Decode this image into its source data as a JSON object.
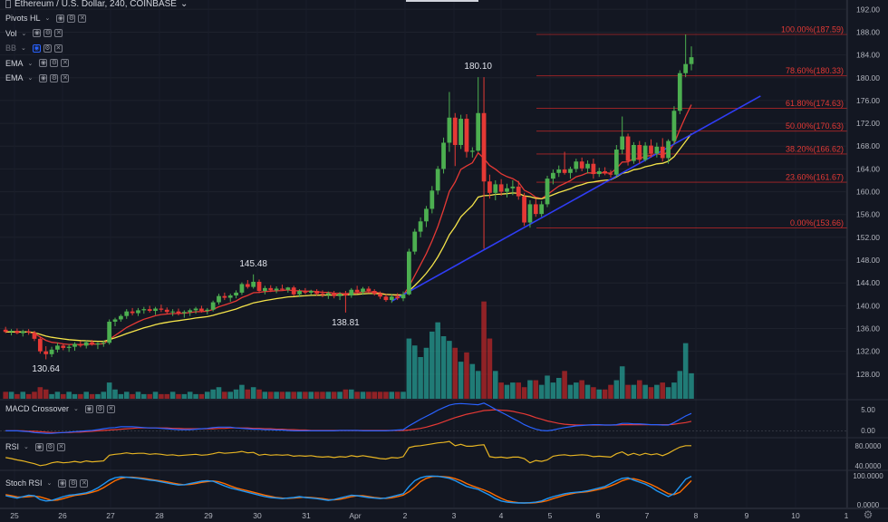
{
  "header": {
    "symbol": "Ethereum / U.S. Dollar, 240, COINBASE"
  },
  "indicators": [
    {
      "label": "Pivots HL",
      "dim": false
    },
    {
      "label": "Vol",
      "dim": false
    },
    {
      "label": "BB",
      "dim": true
    },
    {
      "label": "EMA",
      "dim": false
    },
    {
      "label": "EMA",
      "dim": false
    }
  ],
  "icons": [
    "eye-icon",
    "settings-icon",
    "close-icon"
  ],
  "panes": {
    "macd": {
      "label": "MACD Crossover",
      "ticks": [
        "5.00",
        "0.00"
      ]
    },
    "rsi": {
      "label": "RSI",
      "ticks": [
        "80.0000",
        "40.0000"
      ]
    },
    "stoch": {
      "label": "Stoch RSI",
      "ticks": [
        "100.0000",
        "0.0000"
      ]
    }
  },
  "colors": {
    "bull": "#4caf50",
    "bear": "#e53935",
    "ema_fast": "#e53935",
    "ema_slow": "#f5e44a",
    "trend": "#2f3df5",
    "fib": "#c62828",
    "vol_bull": "#26a69a",
    "vol_bear": "#c62828",
    "macd": "#2962ff",
    "signal": "#e53935",
    "rsi": "#e6b422",
    "stoch_k": "#2196f3",
    "stoch_d": "#ff6d00"
  },
  "chart_data": {
    "type": "candlestick",
    "ylim": [
      124,
      193
    ],
    "y_ticks": [
      "192.00",
      "188.00",
      "184.00",
      "180.00",
      "176.00",
      "172.00",
      "168.00",
      "164.00",
      "160.00",
      "156.00",
      "152.00",
      "148.00",
      "144.00",
      "140.00",
      "136.00",
      "132.00",
      "128.00"
    ],
    "x_ticks": [
      "25",
      "26",
      "27",
      "28",
      "29",
      "30",
      "31",
      "Apr",
      "2",
      "3",
      "4",
      "5",
      "6",
      "7",
      "8",
      "9",
      "10",
      "1"
    ],
    "fib_levels": [
      {
        "label": "100.00%(187.59)",
        "value": 187.59
      },
      {
        "label": "78.60%(180.33)",
        "value": 180.33
      },
      {
        "label": "61.80%(174.63)",
        "value": 174.63
      },
      {
        "label": "50.00%(170.63)",
        "value": 170.63
      },
      {
        "label": "38.20%(166.62)",
        "value": 166.62
      },
      {
        "label": "23.60%(161.67)",
        "value": 161.67
      },
      {
        "label": "0.00%(153.66)",
        "value": 153.66
      }
    ],
    "pivot_labels": [
      {
        "label": "180.10",
        "value": 180.1,
        "bar": 82
      },
      {
        "label": "145.48",
        "value": 145.48,
        "bar": 43
      },
      {
        "label": "138.81",
        "value": 138.81,
        "bar": 59
      },
      {
        "label": "130.64",
        "value": 130.64,
        "bar": 7
      }
    ],
    "trendline": {
      "from_bar": 67,
      "from_price": 140.8,
      "to_bar": 131,
      "to_price": 176.8
    },
    "ohlc": [
      [
        135.8,
        136.3,
        135.2,
        135.4
      ],
      [
        135.4,
        135.9,
        134.8,
        135.6
      ],
      [
        135.6,
        136.0,
        135.0,
        135.2
      ],
      [
        135.2,
        135.8,
        134.6,
        135.5
      ],
      [
        135.5,
        135.9,
        134.9,
        135.3
      ],
      [
        135.3,
        135.6,
        133.8,
        134.2
      ],
      [
        134.2,
        134.6,
        131.6,
        132.0
      ],
      [
        132.0,
        132.9,
        130.6,
        131.5
      ],
      [
        131.5,
        132.8,
        131.0,
        132.3
      ],
      [
        132.3,
        133.5,
        131.8,
        133.0
      ],
      [
        133.0,
        133.4,
        132.2,
        132.6
      ],
      [
        132.6,
        133.2,
        131.9,
        132.8
      ],
      [
        132.8,
        133.6,
        132.1,
        133.3
      ],
      [
        133.3,
        133.8,
        132.7,
        133.0
      ],
      [
        133.0,
        133.9,
        132.5,
        133.6
      ],
      [
        133.6,
        134.0,
        133.0,
        133.2
      ],
      [
        133.2,
        133.6,
        132.4,
        133.4
      ],
      [
        133.4,
        133.9,
        132.8,
        133.5
      ],
      [
        133.5,
        137.6,
        133.2,
        137.2
      ],
      [
        137.2,
        137.9,
        136.4,
        137.6
      ],
      [
        137.6,
        138.5,
        137.2,
        138.2
      ],
      [
        138.2,
        139.4,
        137.7,
        139.0
      ],
      [
        139.0,
        139.6,
        138.3,
        138.7
      ],
      [
        138.7,
        139.6,
        138.2,
        139.2
      ],
      [
        139.2,
        139.8,
        138.6,
        139.4
      ],
      [
        139.4,
        140.0,
        138.8,
        139.1
      ],
      [
        139.1,
        139.8,
        138.4,
        139.5
      ],
      [
        139.5,
        140.2,
        138.9,
        139.3
      ],
      [
        139.3,
        139.7,
        138.5,
        138.9
      ],
      [
        138.9,
        139.4,
        138.2,
        139.0
      ],
      [
        139.0,
        139.5,
        138.3,
        138.7
      ],
      [
        138.7,
        139.2,
        137.9,
        138.9
      ],
      [
        138.9,
        139.5,
        138.2,
        139.2
      ],
      [
        139.2,
        139.8,
        138.6,
        139.5
      ],
      [
        139.5,
        140.0,
        138.8,
        139.1
      ],
      [
        139.1,
        139.6,
        138.5,
        139.3
      ],
      [
        139.3,
        140.9,
        139.0,
        140.6
      ],
      [
        140.6,
        142.1,
        140.2,
        141.7
      ],
      [
        141.7,
        142.3,
        141.0,
        141.4
      ],
      [
        141.4,
        142.1,
        140.7,
        141.8
      ],
      [
        141.8,
        142.7,
        141.3,
        142.3
      ],
      [
        142.3,
        144.1,
        141.9,
        143.8
      ],
      [
        143.8,
        144.5,
        143.0,
        143.3
      ],
      [
        143.3,
        145.5,
        143.0,
        144.2
      ],
      [
        144.2,
        144.6,
        142.2,
        142.6
      ],
      [
        142.6,
        143.5,
        142.0,
        143.1
      ],
      [
        143.1,
        143.6,
        142.4,
        142.7
      ],
      [
        142.7,
        143.4,
        142.2,
        143.0
      ],
      [
        143.0,
        143.7,
        142.6,
        142.8
      ],
      [
        142.8,
        143.3,
        142.3,
        143.2
      ],
      [
        143.2,
        143.5,
        141.7,
        142.0
      ],
      [
        142.0,
        142.9,
        141.5,
        142.6
      ],
      [
        142.6,
        143.1,
        142.0,
        142.3
      ],
      [
        142.3,
        142.8,
        141.9,
        142.6
      ],
      [
        142.6,
        142.9,
        141.8,
        142.1
      ],
      [
        142.1,
        142.7,
        141.5,
        141.9
      ],
      [
        141.9,
        142.5,
        141.2,
        142.2
      ],
      [
        142.2,
        142.6,
        141.3,
        141.7
      ],
      [
        141.7,
        142.4,
        141.0,
        142.1
      ],
      [
        142.1,
        142.6,
        138.8,
        141.8
      ],
      [
        141.8,
        143.1,
        141.4,
        142.8
      ],
      [
        142.8,
        143.5,
        142.1,
        142.4
      ],
      [
        142.4,
        143.3,
        141.9,
        143.0
      ],
      [
        143.0,
        143.4,
        142.2,
        142.6
      ],
      [
        142.6,
        142.9,
        141.8,
        142.1
      ],
      [
        142.1,
        142.5,
        141.2,
        141.6
      ],
      [
        141.6,
        142.0,
        140.7,
        141.0
      ],
      [
        141.0,
        142.0,
        140.5,
        141.6
      ],
      [
        141.6,
        142.2,
        141.0,
        141.3
      ],
      [
        141.3,
        142.5,
        140.8,
        142.0
      ],
      [
        142.0,
        150.0,
        141.8,
        149.5
      ],
      [
        149.5,
        153.5,
        149.0,
        153.0
      ],
      [
        153.0,
        155.5,
        152.0,
        154.8
      ],
      [
        154.8,
        157.5,
        153.8,
        157.0
      ],
      [
        157.0,
        161.0,
        156.2,
        160.2
      ],
      [
        160.2,
        164.5,
        159.5,
        164.0
      ],
      [
        164.0,
        169.5,
        163.2,
        168.6
      ],
      [
        168.6,
        177.5,
        167.0,
        173.0
      ],
      [
        173.0,
        173.8,
        164.5,
        168.2
      ],
      [
        168.2,
        173.5,
        167.5,
        172.8
      ],
      [
        172.8,
        173.6,
        166.0,
        167.0
      ],
      [
        167.0,
        167.8,
        166.0,
        167.2
      ],
      [
        167.2,
        180.1,
        167.0,
        173.8
      ],
      [
        173.8,
        180.1,
        150.0,
        161.8
      ],
      [
        161.8,
        163.0,
        158.8,
        159.8
      ],
      [
        159.8,
        162.0,
        158.5,
        161.3
      ],
      [
        161.3,
        162.2,
        159.3,
        160.0
      ],
      [
        160.0,
        161.4,
        159.0,
        160.6
      ],
      [
        160.6,
        162.0,
        159.4,
        160.9
      ],
      [
        160.9,
        161.9,
        158.6,
        159.2
      ],
      [
        159.2,
        159.8,
        154.0,
        154.6
      ],
      [
        154.6,
        158.5,
        153.7,
        157.8
      ],
      [
        157.8,
        158.8,
        155.6,
        156.1
      ],
      [
        156.1,
        158.4,
        155.6,
        157.8
      ],
      [
        157.8,
        162.8,
        157.3,
        162.3
      ],
      [
        162.3,
        163.9,
        161.3,
        163.3
      ],
      [
        163.3,
        164.6,
        162.6,
        163.9
      ],
      [
        163.9,
        167.0,
        163.0,
        163.3
      ],
      [
        163.3,
        164.4,
        162.3,
        164.0
      ],
      [
        164.0,
        165.8,
        163.4,
        165.3
      ],
      [
        165.3,
        166.0,
        163.6,
        164.1
      ],
      [
        164.1,
        165.5,
        163.2,
        164.9
      ],
      [
        164.9,
        165.8,
        162.3,
        163.1
      ],
      [
        163.1,
        164.2,
        162.6,
        163.6
      ],
      [
        163.6,
        164.3,
        162.9,
        163.2
      ],
      [
        163.2,
        163.8,
        162.5,
        163.0
      ],
      [
        163.0,
        168.2,
        162.6,
        167.4
      ],
      [
        167.4,
        173.2,
        166.6,
        169.7
      ],
      [
        169.7,
        170.2,
        164.6,
        165.4
      ],
      [
        165.4,
        168.7,
        164.9,
        168.2
      ],
      [
        168.2,
        168.9,
        164.9,
        165.6
      ],
      [
        165.6,
        168.7,
        165.3,
        168.1
      ],
      [
        168.1,
        169.2,
        166.0,
        166.7
      ],
      [
        166.7,
        168.6,
        166.0,
        167.9
      ],
      [
        167.9,
        169.4,
        165.3,
        165.9
      ],
      [
        165.9,
        169.2,
        164.9,
        168.9
      ],
      [
        168.9,
        175.0,
        168.3,
        174.2
      ],
      [
        174.2,
        181.3,
        173.6,
        180.8
      ],
      [
        180.8,
        187.59,
        180.1,
        182.4
      ],
      [
        182.4,
        185.5,
        181.3,
        183.6
      ]
    ],
    "volume": [
      3,
      3,
      2,
      3,
      2,
      3,
      5,
      4,
      2,
      3,
      2,
      3,
      2,
      2,
      3,
      2,
      2,
      3,
      7,
      4,
      2,
      3,
      2,
      3,
      2,
      2,
      3,
      2,
      2,
      3,
      2,
      2,
      3,
      2,
      2,
      3,
      4,
      5,
      3,
      3,
      4,
      6,
      4,
      5,
      4,
      3,
      3,
      3,
      3,
      3,
      3,
      3,
      3,
      3,
      3,
      3,
      3,
      3,
      3,
      4,
      4,
      3,
      3,
      3,
      3,
      3,
      3,
      3,
      3,
      3,
      26,
      23,
      18,
      22,
      29,
      33,
      27,
      25,
      22,
      16,
      20,
      15,
      12,
      42,
      26,
      12,
      7,
      6,
      7,
      7,
      5,
      8,
      8,
      6,
      10,
      7,
      9,
      12,
      6,
      7,
      8,
      6,
      5,
      4,
      4,
      6,
      8,
      14,
      6,
      6,
      8,
      6,
      5,
      6,
      7,
      5,
      7,
      12,
      24,
      11
    ],
    "macd": [
      0.0,
      0.0,
      0.0,
      -0.1,
      -0.2,
      -0.4,
      -0.5,
      -0.6,
      -0.6,
      -0.5,
      -0.4,
      -0.3,
      -0.2,
      -0.1,
      0.0,
      0.1,
      0.3,
      0.5,
      0.7,
      0.8,
      1.0,
      1.0,
      1.0,
      0.9,
      0.8,
      0.7,
      0.7,
      0.6,
      0.5,
      0.4,
      0.3,
      0.3,
      0.3,
      0.4,
      0.5,
      0.6,
      0.8,
      0.9,
      0.9,
      0.9,
      0.7,
      0.6,
      0.5,
      0.4,
      0.4,
      0.3,
      0.3,
      0.2,
      0.2,
      0.1,
      0.0,
      0.0,
      0.0,
      0.0,
      0.0,
      0.0,
      0.0,
      0.0,
      0.1,
      0.1,
      0.1,
      0.1,
      0.0,
      0.0,
      0.0,
      0.0,
      0.0,
      0.1,
      0.2,
      0.3,
      1.2,
      2.0,
      2.8,
      3.5,
      4.2,
      5.0,
      5.6,
      6.2,
      6.5,
      6.6,
      6.5,
      6.4,
      6.3,
      6.7,
      6.0,
      5.2,
      4.5,
      3.8,
      3.0,
      2.3,
      1.5,
      0.9,
      0.4,
      0.1,
      0.0,
      0.2,
      0.5,
      0.8,
      1.0,
      1.2,
      1.3,
      1.4,
      1.5,
      1.5,
      1.4,
      1.4,
      1.5,
      1.8,
      1.8,
      1.7,
      1.7,
      1.6,
      1.5,
      1.5,
      1.4,
      1.4,
      2.0,
      2.8,
      3.6,
      4.2
    ],
    "signal": [
      0.0,
      0.0,
      0.0,
      0.0,
      -0.1,
      -0.1,
      -0.2,
      -0.3,
      -0.4,
      -0.4,
      -0.4,
      -0.4,
      -0.3,
      -0.3,
      -0.2,
      -0.1,
      0.0,
      0.1,
      0.2,
      0.3,
      0.4,
      0.5,
      0.6,
      0.7,
      0.7,
      0.7,
      0.7,
      0.7,
      0.7,
      0.6,
      0.6,
      0.5,
      0.5,
      0.5,
      0.5,
      0.5,
      0.5,
      0.6,
      0.6,
      0.7,
      0.7,
      0.7,
      0.7,
      0.6,
      0.6,
      0.5,
      0.5,
      0.4,
      0.4,
      0.3,
      0.3,
      0.2,
      0.2,
      0.1,
      0.1,
      0.1,
      0.1,
      0.1,
      0.1,
      0.1,
      0.1,
      0.1,
      0.1,
      0.1,
      0.1,
      0.1,
      0.1,
      0.1,
      0.1,
      0.1,
      0.2,
      0.4,
      0.6,
      0.9,
      1.3,
      1.7,
      2.2,
      2.7,
      3.2,
      3.6,
      4.0,
      4.3,
      4.6,
      4.9,
      5.0,
      5.1,
      5.0,
      4.9,
      4.7,
      4.4,
      4.1,
      3.7,
      3.2,
      2.8,
      2.4,
      2.1,
      1.8,
      1.6,
      1.5,
      1.4,
      1.4,
      1.4,
      1.4,
      1.4,
      1.4,
      1.4,
      1.4,
      1.5,
      1.5,
      1.5,
      1.5,
      1.5,
      1.5,
      1.5,
      1.5,
      1.5,
      1.6,
      1.8,
      2.0,
      2.3
    ],
    "rsi": [
      55,
      53,
      50,
      48,
      45,
      42,
      38,
      40,
      44,
      46,
      44,
      45,
      47,
      45,
      48,
      46,
      47,
      48,
      60,
      62,
      63,
      65,
      63,
      64,
      64,
      62,
      63,
      62,
      60,
      61,
      59,
      60,
      61,
      62,
      60,
      61,
      63,
      66,
      64,
      65,
      66,
      68,
      65,
      66,
      60,
      62,
      60,
      61,
      60,
      61,
      58,
      59,
      58,
      59,
      57,
      56,
      57,
      55,
      57,
      56,
      59,
      57,
      59,
      57,
      55,
      53,
      52,
      55,
      54,
      57,
      76,
      79,
      80,
      82,
      84,
      86,
      87,
      89,
      80,
      83,
      79,
      79,
      81,
      82,
      57,
      55,
      56,
      54,
      56,
      56,
      53,
      44,
      49,
      47,
      50,
      58,
      60,
      61,
      59,
      60,
      61,
      60,
      57,
      58,
      57,
      56,
      63,
      67,
      60,
      64,
      60,
      64,
      61,
      63,
      59,
      64,
      71,
      77,
      80,
      80
    ],
    "stoch_k": [
      28,
      24,
      20,
      25,
      30,
      28,
      15,
      10,
      12,
      18,
      25,
      30,
      32,
      35,
      38,
      45,
      55,
      68,
      82,
      90,
      93,
      92,
      90,
      88,
      85,
      82,
      80,
      76,
      72,
      68,
      65,
      66,
      70,
      74,
      78,
      80,
      78,
      70,
      62,
      55,
      50,
      45,
      40,
      35,
      30,
      25,
      22,
      20,
      18,
      20,
      22,
      25,
      22,
      20,
      18,
      15,
      12,
      15,
      20,
      25,
      30,
      28,
      25,
      22,
      20,
      18,
      20,
      25,
      30,
      35,
      60,
      80,
      90,
      95,
      96,
      95,
      92,
      88,
      80,
      70,
      60,
      55,
      50,
      40,
      30,
      18,
      10,
      6,
      4,
      3,
      3,
      4,
      6,
      10,
      18,
      25,
      30,
      35,
      38,
      40,
      42,
      45,
      50,
      55,
      60,
      70,
      80,
      88,
      90,
      82,
      75,
      68,
      58,
      45,
      35,
      25,
      35,
      60,
      85,
      95
    ],
    "stoch_d": [
      32,
      28,
      24,
      23,
      25,
      27,
      24,
      18,
      12,
      13,
      18,
      24,
      29,
      32,
      35,
      40,
      46,
      56,
      68,
      80,
      88,
      92,
      92,
      90,
      88,
      85,
      82,
      79,
      76,
      72,
      68,
      66,
      67,
      70,
      74,
      77,
      79,
      76,
      70,
      62,
      55,
      50,
      45,
      40,
      35,
      30,
      26,
      22,
      20,
      19,
      20,
      22,
      23,
      22,
      20,
      18,
      15,
      14,
      16,
      20,
      25,
      28,
      28,
      25,
      22,
      20,
      19,
      21,
      25,
      30,
      42,
      58,
      77,
      88,
      94,
      95,
      94,
      92,
      87,
      80,
      70,
      62,
      55,
      48,
      40,
      29,
      19,
      11,
      7,
      4,
      3,
      3,
      4,
      7,
      11,
      18,
      24,
      30,
      34,
      38,
      40,
      42,
      46,
      50,
      55,
      62,
      70,
      80,
      86,
      87,
      82,
      75,
      67,
      57,
      46,
      35,
      32,
      40,
      60,
      80
    ]
  }
}
